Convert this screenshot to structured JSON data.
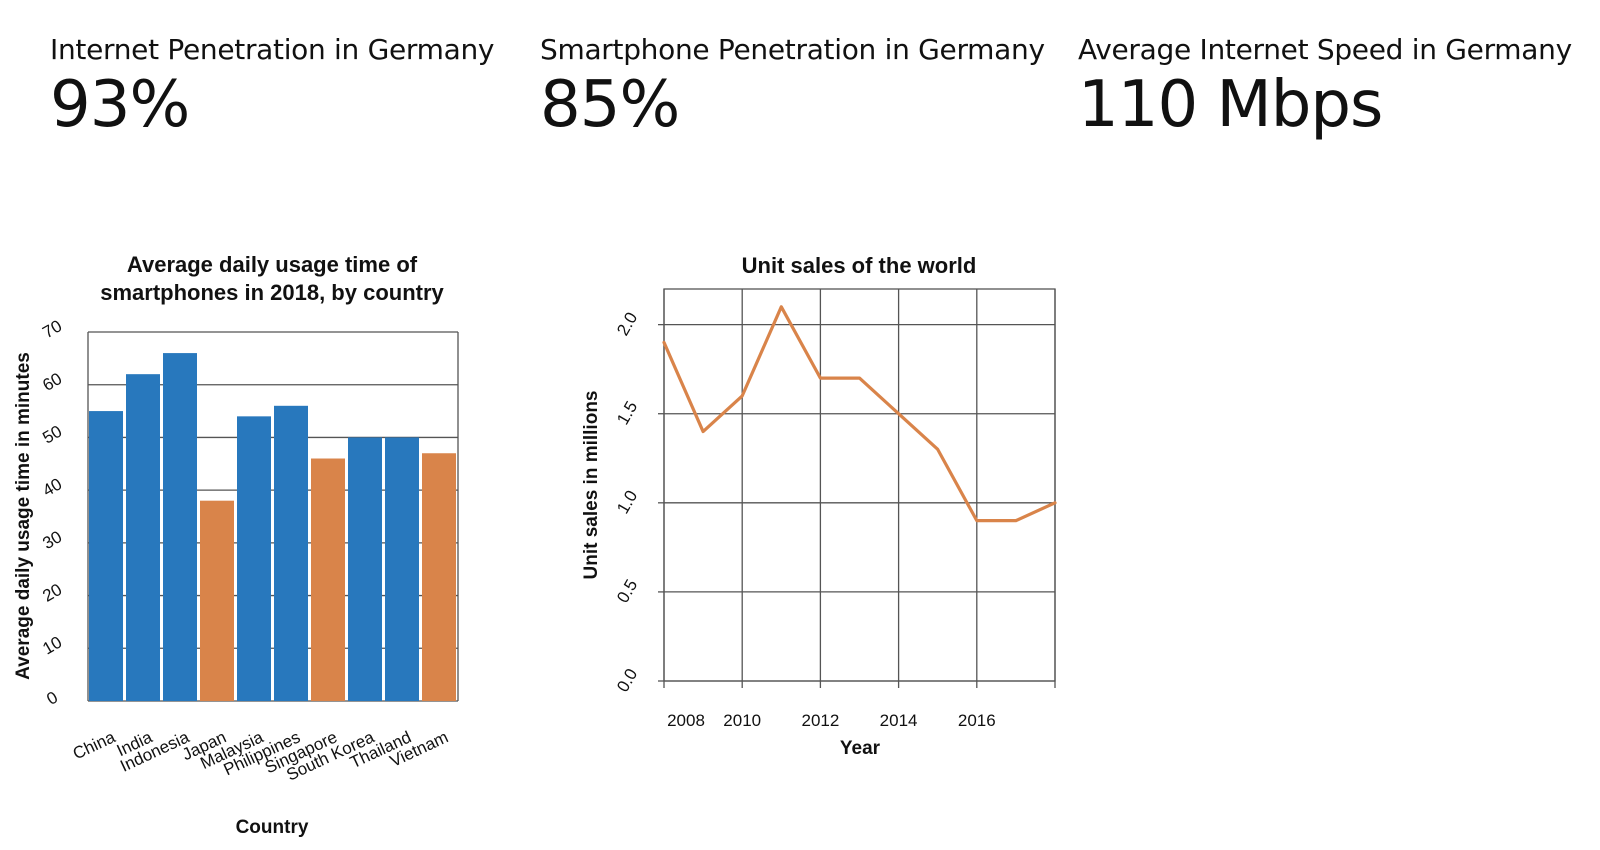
{
  "kpis": [
    {
      "label": "Internet Penetration in Germany",
      "value": "93%"
    },
    {
      "label": "Smartphone Penetration in Germany",
      "value": "85%"
    },
    {
      "label": "Average Internet Speed in Germany",
      "value": "110 Mbps"
    }
  ],
  "colors": {
    "blue": "#2878BD",
    "orange": "#D9844A",
    "text": "#111111",
    "grid": "#555555"
  },
  "chart_data": [
    {
      "type": "bar",
      "title": [
        "Average daily usage time of",
        "smartphones in 2018, by country"
      ],
      "xlabel": "Country",
      "ylabel": "Average daily usage time in minutes",
      "categories": [
        "China",
        "India",
        "Indonesia",
        "Japan",
        "Malaysia",
        "Philippines",
        "Singapore",
        "South Korea",
        "Thailand",
        "Vietnam"
      ],
      "values": [
        55,
        62,
        66,
        38,
        54,
        56,
        46,
        50,
        50,
        47
      ],
      "bar_colors": [
        "blue",
        "blue",
        "blue",
        "orange",
        "blue",
        "blue",
        "orange",
        "blue",
        "blue",
        "orange"
      ],
      "ylim": [
        0,
        70
      ],
      "yticks": [
        0,
        10,
        20,
        30,
        40,
        50,
        60,
        70
      ],
      "grid": "horizontal",
      "legend": "none"
    },
    {
      "type": "line",
      "title": "Unit sales of the world",
      "xlabel": "Year",
      "ylabel": "Unit sales in millions",
      "x": [
        2007,
        2008,
        2009,
        2010,
        2011,
        2012,
        2013,
        2014,
        2015,
        2016,
        2017
      ],
      "values": [
        1.9,
        1.4,
        1.6,
        2.1,
        1.7,
        1.7,
        1.5,
        1.3,
        0.9,
        0.9,
        1.0
      ],
      "xlim": [
        2007,
        2017
      ],
      "ylim": [
        0,
        2.2
      ],
      "xtick_values": [
        2007,
        2009,
        2011,
        2013,
        2015,
        2017
      ],
      "xtick_labels": [
        "2008",
        "2010",
        "2012",
        "2014",
        "2016"
      ],
      "yticks": [
        "0.0",
        "0.5",
        "1.0",
        "1.5",
        "2.0"
      ],
      "line_color": "orange",
      "grid": "both",
      "legend": "none"
    }
  ]
}
